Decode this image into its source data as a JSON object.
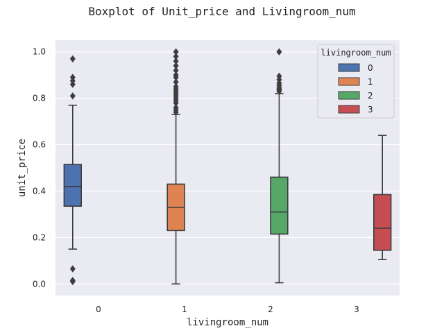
{
  "chart_data": {
    "type": "boxplot",
    "title": "Boxplot of Unit_price and Livingroom_num",
    "xlabel": "livingroom_num",
    "ylabel": "unit_price",
    "categories": [
      "0",
      "1",
      "2",
      "3"
    ],
    "ylim": [
      -0.05,
      1.05
    ],
    "yticks": [
      0.0,
      0.2,
      0.4,
      0.6,
      0.8,
      1.0
    ],
    "ytick_labels": [
      "0.0",
      "0.2",
      "0.4",
      "0.6",
      "0.8",
      "1.0"
    ],
    "grid": true,
    "legend": {
      "title": "livingroom_num",
      "placement": "top-right",
      "entries": [
        "0",
        "1",
        "2",
        "3"
      ]
    },
    "series": [
      {
        "name": "0",
        "color": "#4c72b0",
        "whisker_low": 0.15,
        "q1": 0.335,
        "median": 0.42,
        "q3": 0.515,
        "whisker_high": 0.77,
        "outliers": [
          0.01,
          0.015,
          0.065,
          0.81,
          0.86,
          0.875,
          0.89,
          0.97
        ]
      },
      {
        "name": "1",
        "color": "#dd8452",
        "whisker_low": 0.0,
        "q1": 0.23,
        "median": 0.33,
        "q3": 0.43,
        "whisker_high": 0.73,
        "outliers": [
          0.74,
          0.75,
          0.76,
          0.78,
          0.79,
          0.8,
          0.81,
          0.82,
          0.83,
          0.84,
          0.85,
          0.87,
          0.89,
          0.9,
          0.92,
          0.94,
          0.96,
          0.98,
          1.0
        ]
      },
      {
        "name": "2",
        "color": "#55a868",
        "whisker_low": 0.005,
        "q1": 0.215,
        "median": 0.31,
        "q3": 0.46,
        "whisker_high": 0.82,
        "outliers": [
          0.83,
          0.835,
          0.84,
          0.845,
          0.855,
          0.865,
          0.88,
          0.895,
          1.0
        ]
      },
      {
        "name": "3",
        "color": "#c44e52",
        "whisker_low": 0.105,
        "q1": 0.145,
        "median": 0.24,
        "q3": 0.385,
        "whisker_high": 0.64,
        "outliers": []
      }
    ]
  }
}
